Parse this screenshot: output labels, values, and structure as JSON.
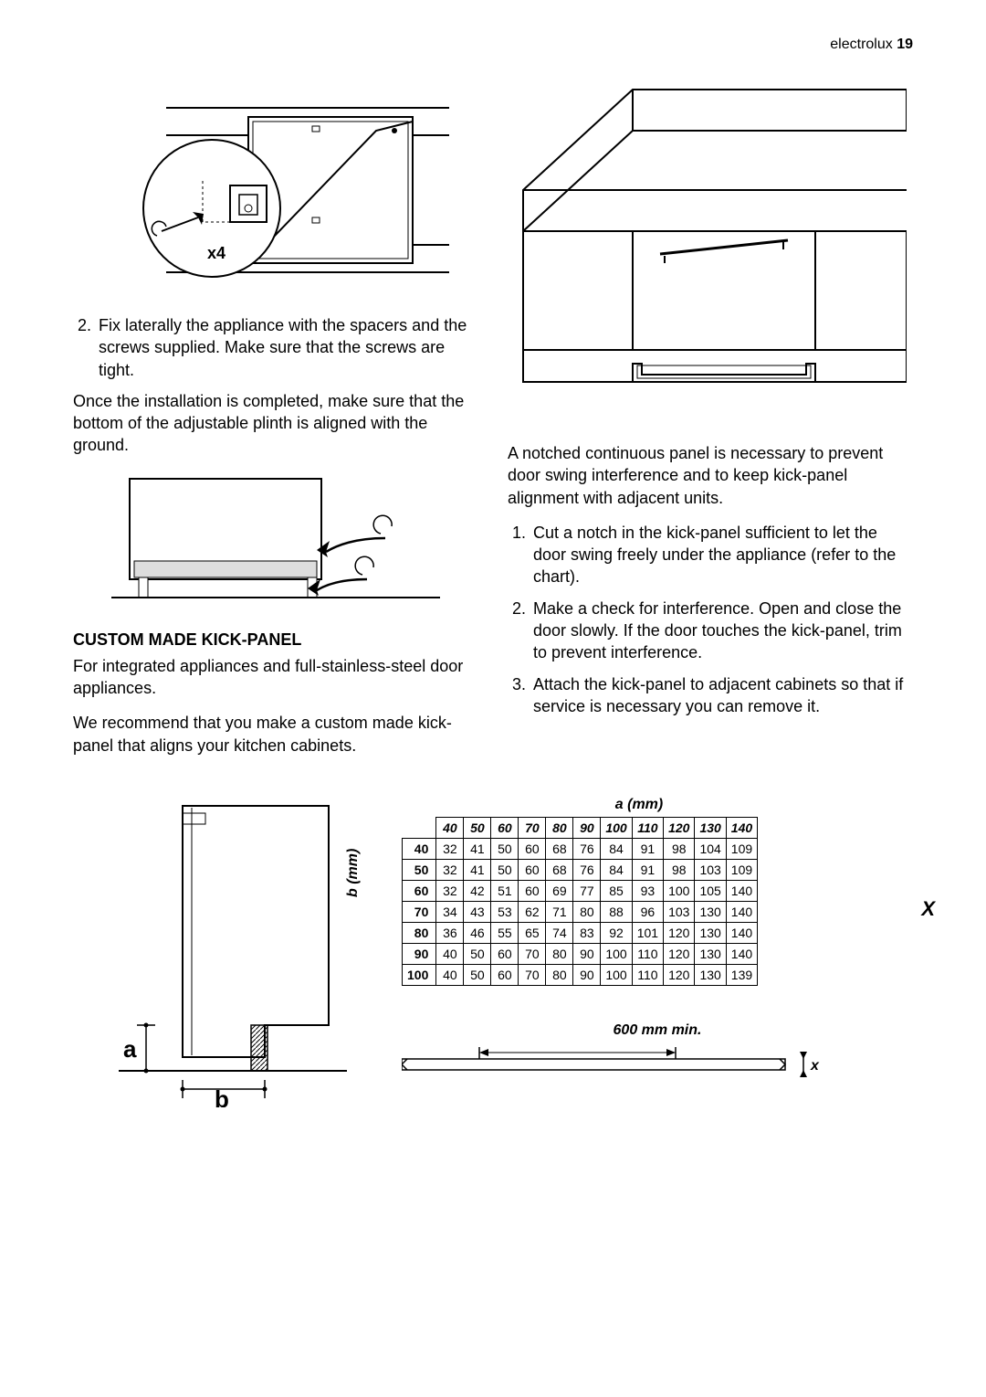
{
  "header": {
    "brand": "electrolux",
    "page": "19"
  },
  "left": {
    "diagram1_label": "x4",
    "step2_num": "2.",
    "step2": "Fix laterally the appliance with the spacers and the screws supplied. Make sure that the screws are tight.",
    "para_after": "Once the installation is completed, make sure that the bottom of the adjustable plinth is aligned with the ground.",
    "heading": "CUSTOM MADE KICK-PANEL",
    "para_kick1": "For integrated appliances and full-stainless-steel door appliances.",
    "para_kick2": "We recommend that you make a custom made kick-panel that aligns your kitchen cabinets."
  },
  "right": {
    "para_notch": "A notched continuous panel is necessary to prevent door swing interference and to keep kick-panel alignment with adjacent units.",
    "step1_num": "1.",
    "step1": "Cut a notch in the kick-panel sufficient to let the door swing freely under the appliance (refer to the chart).",
    "step2_num": "2.",
    "step2": "Make a check for interference. Open and close the door slowly. If the door touches the kick-panel, trim to prevent interference.",
    "step3_num": "3.",
    "step3": "Attach the kick-panel to adjacent cabinets so that if service is necessary you can remove it."
  },
  "chart": {
    "axis_a": "a (mm)",
    "axis_b": "b (mm)",
    "result_label": "X",
    "min_label": "600 mm min.",
    "x_small": "x",
    "a_values": [
      "40",
      "50",
      "60",
      "70",
      "80",
      "90",
      "100",
      "110",
      "120",
      "130",
      "140"
    ],
    "b_values": [
      "40",
      "50",
      "60",
      "70",
      "80",
      "90",
      "100"
    ],
    "rows": [
      [
        "32",
        "41",
        "50",
        "60",
        "68",
        "76",
        "84",
        "91",
        "98",
        "104",
        "109"
      ],
      [
        "32",
        "41",
        "50",
        "60",
        "68",
        "76",
        "84",
        "91",
        "98",
        "103",
        "109"
      ],
      [
        "32",
        "42",
        "51",
        "60",
        "69",
        "77",
        "85",
        "93",
        "100",
        "105",
        "140"
      ],
      [
        "34",
        "43",
        "53",
        "62",
        "71",
        "80",
        "88",
        "96",
        "103",
        "130",
        "140"
      ],
      [
        "36",
        "46",
        "55",
        "65",
        "74",
        "83",
        "92",
        "101",
        "120",
        "130",
        "140"
      ],
      [
        "40",
        "50",
        "60",
        "70",
        "80",
        "90",
        "100",
        "110",
        "120",
        "130",
        "140"
      ],
      [
        "40",
        "50",
        "60",
        "70",
        "80",
        "90",
        "100",
        "110",
        "120",
        "130",
        "139"
      ]
    ],
    "side_labels": {
      "a": "a",
      "b": "b"
    }
  }
}
